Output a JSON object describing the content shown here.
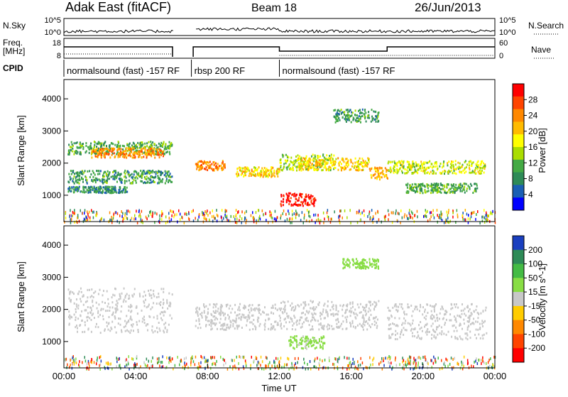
{
  "header": {
    "station": "Adak East (fitACF)",
    "beam": "Beam 18",
    "date": "26/Jun/2013"
  },
  "left_labels": {
    "nsky": "N.Sky",
    "freq": "Freq.",
    "freq_unit": "[MHz]",
    "cpid": "CPID"
  },
  "right_labels": {
    "nsearch": "N.Search",
    "nave": "Nave"
  },
  "noise_panel": {
    "left_ticks": [
      "10^5",
      "10^0"
    ],
    "right_ticks": [
      "10^5",
      "10^0"
    ]
  },
  "freq_panel": {
    "left_ticks": [
      "18",
      "8"
    ],
    "right_ticks": [
      "60",
      "0"
    ]
  },
  "cpid_segments": [
    {
      "label": "normalsound (fast) -157 RF",
      "start_hour": 0.0,
      "end_hour": 7.1
    },
    {
      "label": "rbsp 200 RF",
      "start_hour": 7.1,
      "end_hour": 12.0
    },
    {
      "label": "normalsound (fast) -157 RF",
      "start_hour": 12.0,
      "end_hour": 24.0
    }
  ],
  "x_axis": {
    "label": "Time UT",
    "ticks": [
      "00:00",
      "04:00",
      "08:00",
      "12:00",
      "16:00",
      "20:00",
      "00:00"
    ]
  },
  "power_colorbar": {
    "label": "Power [dB]",
    "ticks": [
      "28",
      "24",
      "20",
      "16",
      "12",
      "8",
      "4"
    ],
    "colors": [
      "#ff0000",
      "#ff4400",
      "#ff8800",
      "#ffbb00",
      "#ffff00",
      "#aadd00",
      "#44aa44",
      "#2e8b57",
      "#1a5fb4",
      "#0000ff"
    ]
  },
  "velocity_colorbar": {
    "label": "Velocity [m s^-1]",
    "ticks": [
      "200",
      "100",
      "50",
      "15",
      "-15",
      "-50",
      "-100",
      "-200"
    ],
    "colors": [
      "#1a3fbf",
      "#2e8b57",
      "#44bb44",
      "#88dd44",
      "#c8c8c8",
      "#ffcc00",
      "#ff8800",
      "#ff4400",
      "#ff0000"
    ]
  },
  "chart_data": [
    {
      "type": "heatmap",
      "title": "Power",
      "ylabel": "Slant Range [km]",
      "xlabel": "Time UT",
      "xlim_hours": [
        0,
        24
      ],
      "ylim_km": [
        180,
        4600
      ],
      "y_ticks": [
        1000,
        2000,
        3000,
        4000
      ],
      "colorbar": "Power [dB]",
      "value_range": [
        0,
        30
      ],
      "bands": [
        {
          "t": [
            0.2,
            6.0
          ],
          "r": [
            2300,
            2700
          ],
          "v": 10
        },
        {
          "t": [
            1.5,
            5.5
          ],
          "r": [
            2200,
            2500
          ],
          "v": 22
        },
        {
          "t": [
            0.2,
            6.0
          ],
          "r": [
            1400,
            1800
          ],
          "v": 9
        },
        {
          "t": [
            0.2,
            3.5
          ],
          "r": [
            1100,
            1300
          ],
          "v": 8
        },
        {
          "t": [
            7.3,
            9.0
          ],
          "r": [
            1800,
            2100
          ],
          "v": 22
        },
        {
          "t": [
            9.5,
            12.0
          ],
          "r": [
            1600,
            1900
          ],
          "v": 18
        },
        {
          "t": [
            12.0,
            15.0
          ],
          "r": [
            1800,
            2300
          ],
          "v": 14
        },
        {
          "t": [
            12.0,
            14.0
          ],
          "r": [
            700,
            1100
          ],
          "v": 28
        },
        {
          "t": [
            13.0,
            17.0
          ],
          "r": [
            1800,
            2200
          ],
          "v": 18
        },
        {
          "t": [
            15.0,
            17.5
          ],
          "r": [
            3300,
            3700
          ],
          "v": 9
        },
        {
          "t": [
            17.0,
            18.0
          ],
          "r": [
            1500,
            1900
          ],
          "v": 20
        },
        {
          "t": [
            18.0,
            23.5
          ],
          "r": [
            1700,
            2100
          ],
          "v": 15
        },
        {
          "t": [
            19.0,
            23.0
          ],
          "r": [
            1100,
            1400
          ],
          "v": 10
        }
      ]
    },
    {
      "type": "heatmap",
      "title": "Velocity",
      "ylabel": "Slant Range [km]",
      "xlabel": "Time UT",
      "xlim_hours": [
        0,
        24
      ],
      "ylim_km": [
        180,
        4600
      ],
      "y_ticks": [
        1000,
        2000,
        3000,
        4000
      ],
      "colorbar": "Velocity [m s^-1]",
      "value_range": [
        -200,
        200
      ],
      "bands": [
        {
          "t": [
            0.2,
            6.0
          ],
          "r": [
            1300,
            2700
          ],
          "v": 0
        },
        {
          "t": [
            7.3,
            12.0
          ],
          "r": [
            1400,
            2200
          ],
          "v": 0
        },
        {
          "t": [
            12.0,
            17.5
          ],
          "r": [
            1400,
            2300
          ],
          "v": 0
        },
        {
          "t": [
            12.5,
            14.5
          ],
          "r": [
            800,
            1200
          ],
          "v": 30
        },
        {
          "t": [
            15.5,
            17.5
          ],
          "r": [
            3300,
            3600
          ],
          "v": 40
        },
        {
          "t": [
            18.0,
            23.5
          ],
          "r": [
            1100,
            2200
          ],
          "v": 0
        }
      ]
    }
  ]
}
